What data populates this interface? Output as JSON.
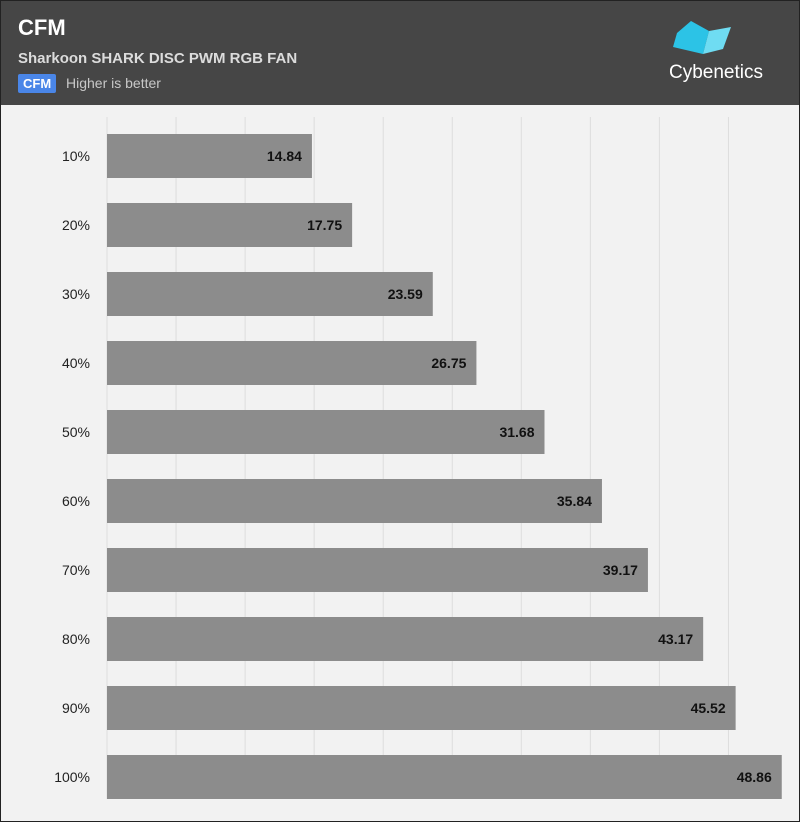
{
  "header": {
    "title": "CFM",
    "subtitle": "Sharkoon SHARK DISC PWM RGB FAN",
    "badge": "CFM",
    "note": "Higher is better",
    "brand": "Cybenetics"
  },
  "colors": {
    "header_bg": "#464646",
    "plot_bg": "#f2f2f2",
    "bar": "#8c8c8c",
    "badge": "#4a86e8",
    "logo": "#2cc3e6"
  },
  "chart_data": {
    "type": "bar",
    "orientation": "horizontal",
    "categories": [
      "10%",
      "20%",
      "30%",
      "40%",
      "50%",
      "60%",
      "70%",
      "80%",
      "90%",
      "100%"
    ],
    "values": [
      14.84,
      17.75,
      23.59,
      26.75,
      31.68,
      35.84,
      39.17,
      43.17,
      45.52,
      48.86
    ],
    "xlim": [
      0,
      49
    ],
    "grid": true
  }
}
